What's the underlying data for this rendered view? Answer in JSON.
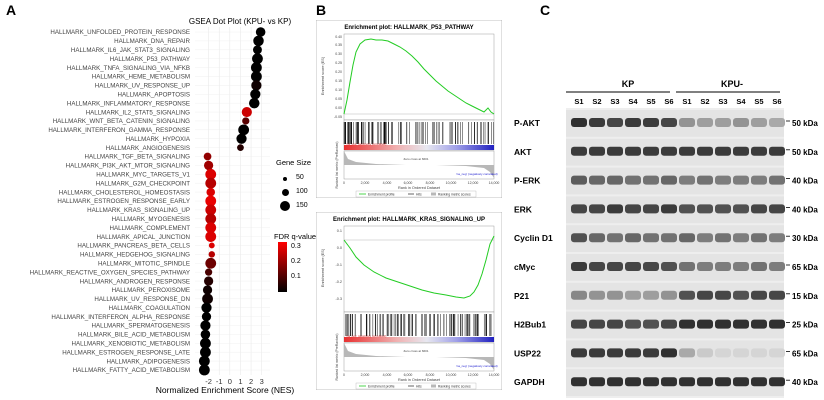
{
  "panels": {
    "a": {
      "letter": "A",
      "title": "GSEA Dot Plot (KPU- vs KP)",
      "xlabel": "Normalized Enrichment Score (NES)",
      "size_legend": {
        "title": "Gene Size",
        "items": [
          "50",
          "100",
          "150"
        ]
      },
      "color_legend": {
        "title": "FDR q-value",
        "ticks": [
          "0.3",
          "0.2",
          "0.1"
        ]
      }
    },
    "b": {
      "letter": "B",
      "plots": [
        {
          "title": "Enrichment plot: HALLMARK_P53_PATHWAY",
          "es_label": "Enrichment score (ES)",
          "rank_label": "Ranked list metric (PreRanked)",
          "x_label": "Rank in Ordered Dataset",
          "zero_label": "Zero cross at 6601",
          "pos_label": "'na_pos' (positively correlated)",
          "neg_label": "'na_neg' (negatively correlated)",
          "legend": [
            "Enrichment profile",
            "Hits",
            "Ranking metric scores"
          ],
          "y_ticks": [
            "0.40",
            "0.35",
            "0.30",
            "0.25",
            "0.20",
            "0.15",
            "0.10",
            "0.05",
            "0.00",
            "-0.05"
          ],
          "x_ticks": [
            "0",
            "2,000",
            "4,000",
            "6,000",
            "8,000",
            "10,000",
            "12,000",
            "14,000"
          ]
        },
        {
          "title": "Enrichment plot: HALLMARK_KRAS_SIGNALING_UP",
          "es_label": "Enrichment score (ES)",
          "rank_label": "Ranked list metric (PreRanked)",
          "x_label": "Rank in Ordered Dataset",
          "zero_label": "Zero cross at 6601",
          "pos_label": "'na_pos' (positively correlated)",
          "neg_label": "'na_neg' (negatively correlated)",
          "legend": [
            "Enrichment profile",
            "Hits",
            "Ranking metric scores"
          ],
          "y_ticks": [
            "0.1",
            "0.0",
            "-0.1",
            "-0.2",
            "-0.3"
          ],
          "x_ticks": [
            "0",
            "2,000",
            "4,000",
            "6,000",
            "8,000",
            "10,000",
            "12,000",
            "14,000"
          ]
        }
      ]
    },
    "c": {
      "letter": "C",
      "group_kp": "KP",
      "group_kpu": "KPU-",
      "lanes": [
        "S1",
        "S2",
        "S3",
        "S4",
        "S5",
        "S6",
        "S1",
        "S2",
        "S3",
        "S4",
        "S5",
        "S6"
      ],
      "blots": [
        {
          "name": "P-AKT",
          "size": "50 kDa"
        },
        {
          "name": "AKT",
          "size": "50 kDa"
        },
        {
          "name": "P-ERK",
          "size": "40 kDa"
        },
        {
          "name": "ERK",
          "size": "40 kDa"
        },
        {
          "name": "Cyclin D1",
          "size": "30 kDa"
        },
        {
          "name": "cMyc",
          "size": "65 kDa"
        },
        {
          "name": "P21",
          "size": "15 kDa"
        },
        {
          "name": "H2Bub1",
          "size": "25 kDa"
        },
        {
          "name": "USP22",
          "size": "65 kDa"
        },
        {
          "name": "GAPDH",
          "size": "40 kDa"
        }
      ],
      "intensities": [
        [
          0.85,
          0.8,
          0.75,
          0.8,
          0.8,
          0.75,
          0.4,
          0.35,
          0.35,
          0.4,
          0.35,
          0.3
        ],
        [
          0.8,
          0.8,
          0.8,
          0.8,
          0.8,
          0.8,
          0.8,
          0.8,
          0.8,
          0.8,
          0.8,
          0.8
        ],
        [
          0.65,
          0.6,
          0.6,
          0.55,
          0.55,
          0.6,
          0.5,
          0.55,
          0.5,
          0.5,
          0.5,
          0.55
        ],
        [
          0.75,
          0.75,
          0.8,
          0.75,
          0.75,
          0.8,
          0.7,
          0.7,
          0.7,
          0.7,
          0.75,
          0.75
        ],
        [
          0.7,
          0.6,
          0.55,
          0.6,
          0.55,
          0.55,
          0.6,
          0.5,
          0.55,
          0.5,
          0.55,
          0.5
        ],
        [
          0.8,
          0.75,
          0.75,
          0.75,
          0.75,
          0.7,
          0.55,
          0.5,
          0.5,
          0.5,
          0.55,
          0.5
        ],
        [
          0.45,
          0.4,
          0.4,
          0.35,
          0.35,
          0.4,
          0.7,
          0.75,
          0.75,
          0.7,
          0.75,
          0.75
        ],
        [
          0.75,
          0.75,
          0.75,
          0.7,
          0.7,
          0.75,
          0.85,
          0.85,
          0.85,
          0.85,
          0.85,
          0.85
        ],
        [
          0.8,
          0.8,
          0.8,
          0.8,
          0.8,
          0.85,
          0.3,
          0.15,
          0.1,
          0.1,
          0.1,
          0.1
        ],
        [
          0.85,
          0.85,
          0.85,
          0.85,
          0.85,
          0.85,
          0.85,
          0.85,
          0.85,
          0.85,
          0.85,
          0.85
        ]
      ]
    }
  },
  "chart_data": {
    "type": "scatter",
    "title": "GSEA Dot Plot (KPU- vs KP)",
    "xlabel": "Normalized Enrichment Score (NES)",
    "xlim": [
      -3,
      3.5
    ],
    "x_ticks": [
      -2,
      -1,
      0,
      1,
      2,
      3
    ],
    "grid": true,
    "size_legend_values": [
      50,
      100,
      150
    ],
    "color_scale": {
      "low": "#000000",
      "high": "#ff0000",
      "label": "FDR q-value",
      "range": [
        0,
        0.35
      ]
    },
    "points": [
      {
        "term": "HALLMARK_UNFOLDED_PROTEIN_RESPONSE",
        "nes": 2.9,
        "size": 110,
        "fdr": 0.0
      },
      {
        "term": "HALLMARK_DNA_REPAIR",
        "nes": 2.7,
        "size": 140,
        "fdr": 0.0
      },
      {
        "term": "HALLMARK_IL6_JAK_STAT3_SIGNALING",
        "nes": 2.6,
        "size": 90,
        "fdr": 0.0
      },
      {
        "term": "HALLMARK_P53_PATHWAY",
        "nes": 2.6,
        "size": 150,
        "fdr": 0.0
      },
      {
        "term": "HALLMARK_TNFA_SIGNALING_VIA_NFKB",
        "nes": 2.5,
        "size": 150,
        "fdr": 0.0
      },
      {
        "term": "HALLMARK_HEME_METABOLISM",
        "nes": 2.5,
        "size": 150,
        "fdr": 0.0
      },
      {
        "term": "HALLMARK_UV_RESPONSE_UP",
        "nes": 2.5,
        "size": 130,
        "fdr": 0.02
      },
      {
        "term": "HALLMARK_APOPTOSIS",
        "nes": 2.4,
        "size": 130,
        "fdr": 0.0
      },
      {
        "term": "HALLMARK_INFLAMMATORY_RESPONSE",
        "nes": 2.3,
        "size": 140,
        "fdr": 0.0
      },
      {
        "term": "HALLMARK_IL2_STAT5_SIGNALING",
        "nes": 1.6,
        "size": 130,
        "fdr": 0.28
      },
      {
        "term": "HALLMARK_WNT_BETA_CATENIN_SIGNALING",
        "nes": 1.5,
        "size": 50,
        "fdr": 0.12
      },
      {
        "term": "HALLMARK_INTERFERON_GAMMA_RESPONSE",
        "nes": 1.3,
        "size": 150,
        "fdr": 0.0
      },
      {
        "term": "HALLMARK_HYPOXIA",
        "nes": 1.1,
        "size": 130,
        "fdr": 0.0
      },
      {
        "term": "HALLMARK_ANGIOGENESIS",
        "nes": 1.0,
        "size": 40,
        "fdr": 0.05
      },
      {
        "term": "HALLMARK_TGF_BETA_SIGNALING",
        "nes": -2.1,
        "size": 60,
        "fdr": 0.2
      },
      {
        "term": "HALLMARK_PI3K_AKT_MTOR_SIGNALING",
        "nes": -2.0,
        "size": 100,
        "fdr": 0.22
      },
      {
        "term": "HALLMARK_MYC_TARGETS_V1",
        "nes": -1.8,
        "size": 150,
        "fdr": 0.3
      },
      {
        "term": "HALLMARK_G2M_CHECKPOINT",
        "nes": -1.8,
        "size": 150,
        "fdr": 0.25
      },
      {
        "term": "HALLMARK_CHOLESTEROL_HOMEOSTASIS",
        "nes": -1.8,
        "size": 80,
        "fdr": 0.3
      },
      {
        "term": "HALLMARK_ESTROGEN_RESPONSE_EARLY",
        "nes": -1.8,
        "size": 150,
        "fdr": 0.32
      },
      {
        "term": "HALLMARK_KRAS_SIGNALING_UP",
        "nes": -1.8,
        "size": 150,
        "fdr": 0.28
      },
      {
        "term": "HALLMARK_MYOGENESIS",
        "nes": -1.8,
        "size": 150,
        "fdr": 0.25
      },
      {
        "term": "HALLMARK_COMPLEMENT",
        "nes": -1.8,
        "size": 150,
        "fdr": 0.3
      },
      {
        "term": "HALLMARK_APICAL_JUNCTION",
        "nes": -1.8,
        "size": 150,
        "fdr": 0.3
      },
      {
        "term": "HALLMARK_PANCREAS_BETA_CELLS",
        "nes": -1.7,
        "size": 25,
        "fdr": 0.3
      },
      {
        "term": "HALLMARK_HEDGEHOG_SIGNALING",
        "nes": -1.7,
        "size": 35,
        "fdr": 0.25
      },
      {
        "term": "HALLMARK_MITOTIC_SPINDLE",
        "nes": -1.8,
        "size": 150,
        "fdr": 0.15
      },
      {
        "term": "HALLMARK_REACTIVE_OXYGEN_SPECIES_PATHWAY",
        "nes": -2.0,
        "size": 50,
        "fdr": 0.1
      },
      {
        "term": "HALLMARK_ANDROGEN_RESPONSE",
        "nes": -2.0,
        "size": 100,
        "fdr": 0.05
      },
      {
        "term": "HALLMARK_PEROXISOME",
        "nes": -2.1,
        "size": 100,
        "fdr": 0.02
      },
      {
        "term": "HALLMARK_UV_RESPONSE_DN",
        "nes": -2.1,
        "size": 150,
        "fdr": 0.02
      },
      {
        "term": "HALLMARK_COAGULATION",
        "nes": -2.2,
        "size": 130,
        "fdr": 0.0
      },
      {
        "term": "HALLMARK_INTERFERON_ALPHA_RESPONSE",
        "nes": -2.2,
        "size": 100,
        "fdr": 0.0
      },
      {
        "term": "HALLMARK_SPERMATOGENESIS",
        "nes": -2.3,
        "size": 130,
        "fdr": 0.0
      },
      {
        "term": "HALLMARK_BILE_ACID_METABOLISM",
        "nes": -2.3,
        "size": 110,
        "fdr": 0.0
      },
      {
        "term": "HALLMARK_XENOBIOTIC_METABOLISM",
        "nes": -2.3,
        "size": 150,
        "fdr": 0.0
      },
      {
        "term": "HALLMARK_ESTROGEN_RESPONSE_LATE",
        "nes": -2.3,
        "size": 150,
        "fdr": 0.0
      },
      {
        "term": "HALLMARK_ADIPOGENESIS",
        "nes": -2.4,
        "size": 150,
        "fdr": 0.0
      },
      {
        "term": "HALLMARK_FATTY_ACID_METABOLISM",
        "nes": -2.4,
        "size": 150,
        "fdr": 0.0
      }
    ]
  }
}
